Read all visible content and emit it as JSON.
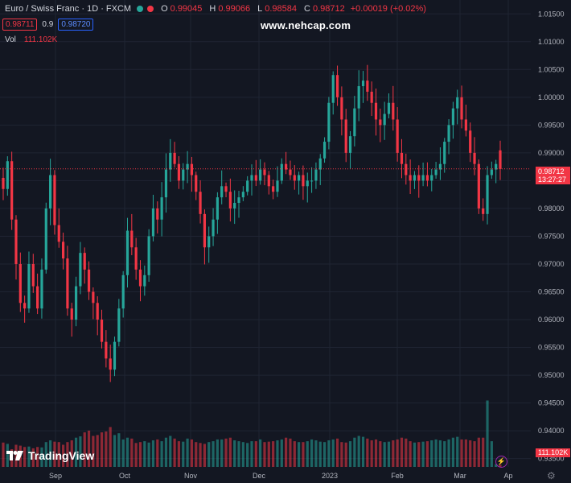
{
  "header": {
    "symbol": "Euro / Swiss Franc · 1D · FXCM",
    "open_label": "O",
    "open": "0.99045",
    "high_label": "H",
    "high": "0.99066",
    "low_label": "L",
    "low": "0.98584",
    "close_label": "C",
    "close": "0.98712",
    "change": "+0.00019 (+0.02%)",
    "bid": "0.98711",
    "spread": "0.9",
    "ask": "0.98720",
    "vol_label": "Vol",
    "vol_value": "111.102K"
  },
  "watermark": "www.nehcap.com",
  "brand": "TradingView",
  "last_price_label": "0.98712",
  "countdown": "13:27:27",
  "volume_label": "111.102K",
  "colors": {
    "up": "#26a69a",
    "down": "#f23645",
    "background": "#131722",
    "grid": "#1f2433"
  },
  "chart_data": {
    "type": "candlestick",
    "title": "Euro / Swiss Franc · 1D · FXCM",
    "x_ticks": [
      "Sep",
      "Oct",
      "Nov",
      "Dec",
      "2023",
      "Feb",
      "Mar",
      "Ap"
    ],
    "y_ticks": [
      "1.01500",
      "1.01000",
      "1.00500",
      "1.00000",
      "0.99500",
      "0.99000",
      "0.98500",
      "0.98000",
      "0.97500",
      "0.97000",
      "0.96500",
      "0.96000",
      "0.95500",
      "0.95000",
      "0.94500",
      "0.94000",
      "0.93500"
    ],
    "ylim": [
      0.9335,
      1.0175
    ],
    "last_price": 0.98712,
    "series": [
      {
        "name": "close",
        "values": [
          0.9835,
          0.9885,
          0.978,
          0.97,
          0.963,
          0.962,
          0.97,
          0.966,
          0.962,
          0.969,
          0.98,
          0.986,
          0.977,
          0.974,
          0.971,
          0.962,
          0.96,
          0.966,
          0.972,
          0.969,
          0.965,
          0.963,
          0.96,
          0.956,
          0.953,
          0.951,
          0.956,
          0.962,
          0.968,
          0.976,
          0.973,
          0.969,
          0.966,
          0.968,
          0.975,
          0.98,
          0.978,
          0.982,
          0.987,
          0.99,
          0.988,
          0.985,
          0.987,
          0.988,
          0.986,
          0.983,
          0.979,
          0.973,
          0.975,
          0.978,
          0.982,
          0.984,
          0.983,
          0.98,
          0.981,
          0.982,
          0.983,
          0.985,
          0.986,
          0.985,
          0.987,
          0.986,
          0.984,
          0.983,
          0.985,
          0.988,
          0.987,
          0.986,
          0.985,
          0.986,
          0.984,
          0.985,
          0.985,
          0.987,
          0.989,
          0.992,
          0.999,
          1.004,
          1.0,
          0.996,
          0.99,
          0.993,
          0.998,
          1.002,
          1.003,
          1.001,
          0.999,
          0.996,
          0.995,
          0.997,
          0.999,
          0.996,
          0.99,
          0.988,
          0.986,
          0.985,
          0.986,
          0.985,
          0.986,
          0.985,
          0.986,
          0.987,
          0.988,
          0.992,
          0.995,
          0.998,
          1.0,
          0.996,
          0.994,
          0.99,
          0.988,
          0.98,
          0.979,
          0.986,
          0.987,
          0.988,
          0.9871
        ]
      },
      {
        "name": "volume",
        "values": [
          55,
          52,
          40,
          50,
          48,
          45,
          46,
          42,
          45,
          44,
          56,
          60,
          57,
          56,
          50,
          56,
          60,
          66,
          69,
          78,
          82,
          70,
          72,
          78,
          80,
          90,
          72,
          76,
          62,
          66,
          64,
          54,
          56,
          58,
          55,
          60,
          62,
          58,
          66,
          70,
          64,
          58,
          57,
          64,
          62,
          56,
          54,
          52,
          56,
          58,
          62,
          62,
          64,
          66,
          60,
          58,
          56,
          54,
          58,
          58,
          62,
          56,
          57,
          58,
          60,
          62,
          66,
          64,
          58,
          56,
          56,
          58,
          62,
          60,
          57,
          56,
          60,
          62,
          64,
          56,
          55,
          58,
          66,
          70,
          68,
          64,
          60,
          62,
          58,
          56,
          57,
          60,
          62,
          66,
          64,
          58,
          55,
          56,
          57,
          58,
          60,
          62,
          60,
          58,
          62,
          66,
          68,
          62,
          62,
          60,
          58,
          66,
          66,
          150,
          58,
          6,
          5
        ]
      }
    ]
  }
}
